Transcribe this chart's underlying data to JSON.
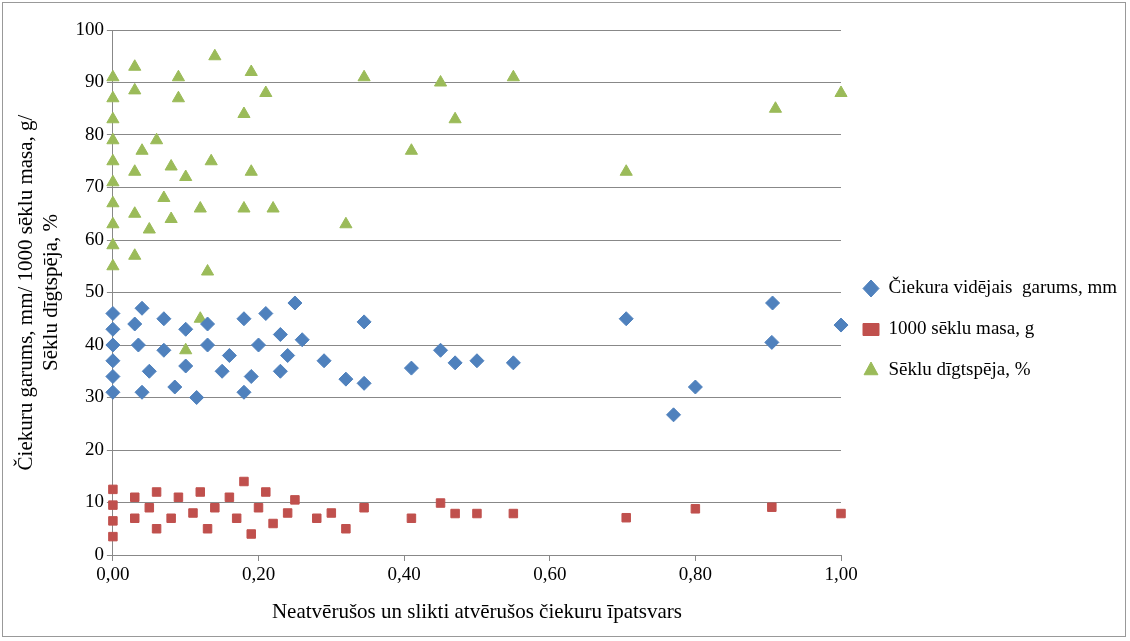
{
  "chart_data": {
    "type": "scatter",
    "xlabel": "Neatvērušos un slikti atvērušos čiekuru īpatsvars",
    "ylabel": "Čiekuru garums, mm/ 1000 sēklu masa, g/\nSēklu dīgtspēja, %",
    "xlim": [
      0,
      1
    ],
    "xticks": [
      {
        "value": 0,
        "label": "0,00"
      },
      {
        "value": 0.2,
        "label": "0,20"
      },
      {
        "value": 0.4,
        "label": "0,40"
      },
      {
        "value": 0.6,
        "label": "0,60"
      },
      {
        "value": 0.8,
        "label": "0,80"
      },
      {
        "value": 1,
        "label": "1,00"
      }
    ],
    "ylim": [
      0,
      100
    ],
    "yticks": [
      0,
      10,
      20,
      30,
      40,
      50,
      60,
      70,
      80,
      90,
      100
    ],
    "grid": "y",
    "legend": "right",
    "series": [
      {
        "name": "Čiekura vidējais  garums, mm",
        "color": "#4f81bd",
        "marker": "diamond",
        "x": [
          0,
          0,
          0,
          0,
          0,
          0,
          0.03,
          0.04,
          0.035,
          0.04,
          0.05,
          0.07,
          0.07,
          0.085,
          0.1,
          0.1,
          0.115,
          0.13,
          0.13,
          0.15,
          0.16,
          0.18,
          0.18,
          0.19,
          0.2,
          0.21,
          0.23,
          0.24,
          0.23,
          0.25,
          0.26,
          0.29,
          0.32,
          0.345,
          0.345,
          0.41,
          0.45,
          0.47,
          0.5,
          0.55,
          0.705,
          0.77,
          0.8,
          0.906,
          0.905,
          1.0
        ],
        "values": [
          31,
          34,
          37,
          40,
          43,
          46,
          44,
          47,
          40,
          31,
          35,
          45,
          39,
          32,
          43,
          36,
          30,
          40,
          44,
          35,
          38,
          45,
          31,
          34,
          40,
          46,
          42,
          38,
          35,
          48,
          41,
          37,
          33.5,
          32.7,
          44.4,
          35.6,
          39,
          36.6,
          37,
          36.6,
          45,
          26.7,
          32,
          48,
          40.5,
          43.8
        ]
      },
      {
        "name": "1000 sēklu masa, g",
        "color": "#c0504d",
        "marker": "square",
        "x": [
          0,
          0,
          0,
          0,
          0.03,
          0.03,
          0.05,
          0.06,
          0.06,
          0.08,
          0.09,
          0.11,
          0.12,
          0.13,
          0.14,
          0.16,
          0.17,
          0.18,
          0.19,
          0.2,
          0.21,
          0.22,
          0.24,
          0.25,
          0.28,
          0.3,
          0.32,
          0.345,
          0.41,
          0.45,
          0.47,
          0.5,
          0.55,
          0.705,
          0.8,
          0.905,
          1.0
        ],
        "values": [
          3.5,
          6.5,
          9.5,
          12.5,
          11,
          7,
          9,
          5,
          12,
          7,
          11,
          8,
          12,
          5,
          9,
          11,
          7,
          14,
          4,
          9,
          12,
          6,
          8,
          10.5,
          7,
          8,
          5,
          9,
          7,
          9.9,
          7.9,
          7.9,
          7.9,
          7.1,
          8.8,
          9.1,
          7.9
        ]
      },
      {
        "name": "Sēklu dīgtspēja, %",
        "color": "#9bbb59",
        "marker": "triangle",
        "x": [
          0,
          0,
          0,
          0,
          0,
          0,
          0,
          0,
          0,
          0,
          0.03,
          0.03,
          0.04,
          0.03,
          0.03,
          0.03,
          0.05,
          0.06,
          0.07,
          0.08,
          0.08,
          0.09,
          0.09,
          0.1,
          0.12,
          0.12,
          0.135,
          0.13,
          0.14,
          0.18,
          0.19,
          0.19,
          0.18,
          0.21,
          0.22,
          0.1,
          0.32,
          0.345,
          0.41,
          0.45,
          0.47,
          0.55,
          0.705,
          0.91,
          1.0
        ],
        "values": [
          55,
          59,
          63,
          67,
          71,
          75,
          79,
          83,
          87,
          91,
          93,
          88.5,
          77,
          73,
          65,
          57,
          62,
          79,
          68,
          64,
          74,
          91,
          87,
          72,
          66,
          45,
          75,
          54,
          95,
          84,
          92,
          73,
          66,
          88,
          66,
          39,
          63,
          91,
          77,
          90,
          83,
          91,
          73,
          85,
          88
        ]
      }
    ]
  }
}
